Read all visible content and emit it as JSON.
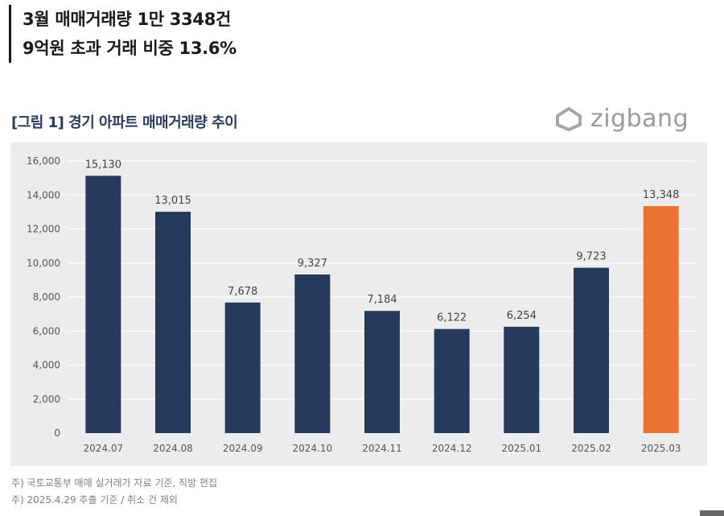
{
  "headline": {
    "line1": "3월 매매거래량 1만 3348건",
    "line2": "9억원 초과 거래 비중 13.6%"
  },
  "figure": {
    "title": "[그림 1] 경기 아파트 매매거래량 추이",
    "brand_name": "zigbang",
    "brand_icon": "zigbang-logo-icon"
  },
  "chart_data": {
    "type": "bar",
    "title": "[그림 1] 경기 아파트 매매거래량 추이",
    "xlabel": "",
    "ylabel": "",
    "categories": [
      "2024.07",
      "2024.08",
      "2024.09",
      "2024.10",
      "2024.11",
      "2024.12",
      "2025.01",
      "2025.02",
      "2025.03"
    ],
    "values": [
      15130,
      13015,
      7678,
      9327,
      7184,
      6122,
      6254,
      9723,
      13348
    ],
    "value_labels": [
      "15,130",
      "13,015",
      "7,678",
      "9,327",
      "7,184",
      "6,122",
      "6,254",
      "9,723",
      "13,348"
    ],
    "ylim": [
      0,
      16000
    ],
    "yticks": [
      0,
      2000,
      4000,
      6000,
      8000,
      10000,
      12000,
      14000,
      16000
    ],
    "ytick_labels": [
      "0",
      "2,000",
      "4,000",
      "6,000",
      "8,000",
      "10,000",
      "12,000",
      "14,000",
      "16,000"
    ],
    "grid": true,
    "colors": {
      "default": "#263a5e",
      "highlight": "#ea7332"
    },
    "highlight_index": 8
  },
  "notes": {
    "line1": "주) 국토교통부 매매 실거래가 자료 기준, 직방 편집",
    "line2": "주) 2025.4.29 추출 기준 / 취소 건 제외"
  }
}
